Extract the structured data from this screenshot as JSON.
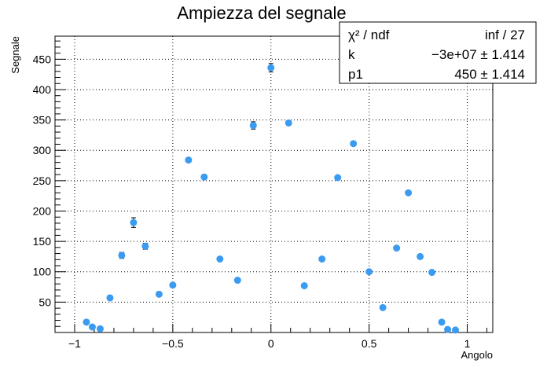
{
  "chart_data": {
    "type": "scatter",
    "title": "Ampiezza del segnale",
    "xlabel": "Angolo",
    "ylabel": "Segnale",
    "xlim": [
      -1.1,
      1.13
    ],
    "ylim": [
      0,
      488
    ],
    "xticks": [
      -1,
      -0.5,
      0,
      0.5,
      1
    ],
    "xtick_labels": [
      "−1",
      "−0.5",
      "0",
      "0.5",
      "1"
    ],
    "yticks": [
      50,
      100,
      150,
      200,
      250,
      300,
      350,
      400,
      450
    ],
    "ytick_labels": [
      "50",
      "100",
      "150",
      "200",
      "250",
      "300",
      "350",
      "400",
      "450"
    ],
    "grid": true,
    "marker_color": "#3b9bf0",
    "series": [
      {
        "points": [
          {
            "x": -0.94,
            "y": 17,
            "err": 0
          },
          {
            "x": -0.91,
            "y": 9,
            "err": 0
          },
          {
            "x": -0.87,
            "y": 6,
            "err": 0
          },
          {
            "x": -0.82,
            "y": 57,
            "err": 4
          },
          {
            "x": -0.76,
            "y": 127,
            "err": 5
          },
          {
            "x": -0.7,
            "y": 181,
            "err": 8
          },
          {
            "x": -0.64,
            "y": 142,
            "err": 5
          },
          {
            "x": -0.57,
            "y": 63,
            "err": 0
          },
          {
            "x": -0.5,
            "y": 78,
            "err": 0
          },
          {
            "x": -0.42,
            "y": 284,
            "err": 0
          },
          {
            "x": -0.34,
            "y": 256,
            "err": 0
          },
          {
            "x": -0.26,
            "y": 121,
            "err": 0
          },
          {
            "x": -0.17,
            "y": 86,
            "err": 0
          },
          {
            "x": -0.09,
            "y": 341,
            "err": 6
          },
          {
            "x": 0.0,
            "y": 436,
            "err": 7
          },
          {
            "x": 0.09,
            "y": 345,
            "err": 0
          },
          {
            "x": 0.17,
            "y": 77,
            "err": 0
          },
          {
            "x": 0.26,
            "y": 121,
            "err": 0
          },
          {
            "x": 0.34,
            "y": 255,
            "err": 0
          },
          {
            "x": 0.42,
            "y": 311,
            "err": 0
          },
          {
            "x": 0.5,
            "y": 100,
            "err": 0
          },
          {
            "x": 0.57,
            "y": 41,
            "err": 0
          },
          {
            "x": 0.64,
            "y": 139,
            "err": 0
          },
          {
            "x": 0.7,
            "y": 230,
            "err": 0
          },
          {
            "x": 0.76,
            "y": 125,
            "err": 0
          },
          {
            "x": 0.82,
            "y": 99,
            "err": 0
          },
          {
            "x": 0.87,
            "y": 17,
            "err": 0
          },
          {
            "x": 0.9,
            "y": 5,
            "err": 0
          },
          {
            "x": 0.94,
            "y": 4,
            "err": 0
          }
        ]
      }
    ],
    "stats_box": {
      "placement": "top-right",
      "rows": [
        {
          "label": "χ² / ndf",
          "value": "inf / 27"
        },
        {
          "label": "k",
          "value": "−3e+07 ± 1.414"
        },
        {
          "label": "p1",
          "value": "450 ± 1.414"
        }
      ]
    }
  }
}
